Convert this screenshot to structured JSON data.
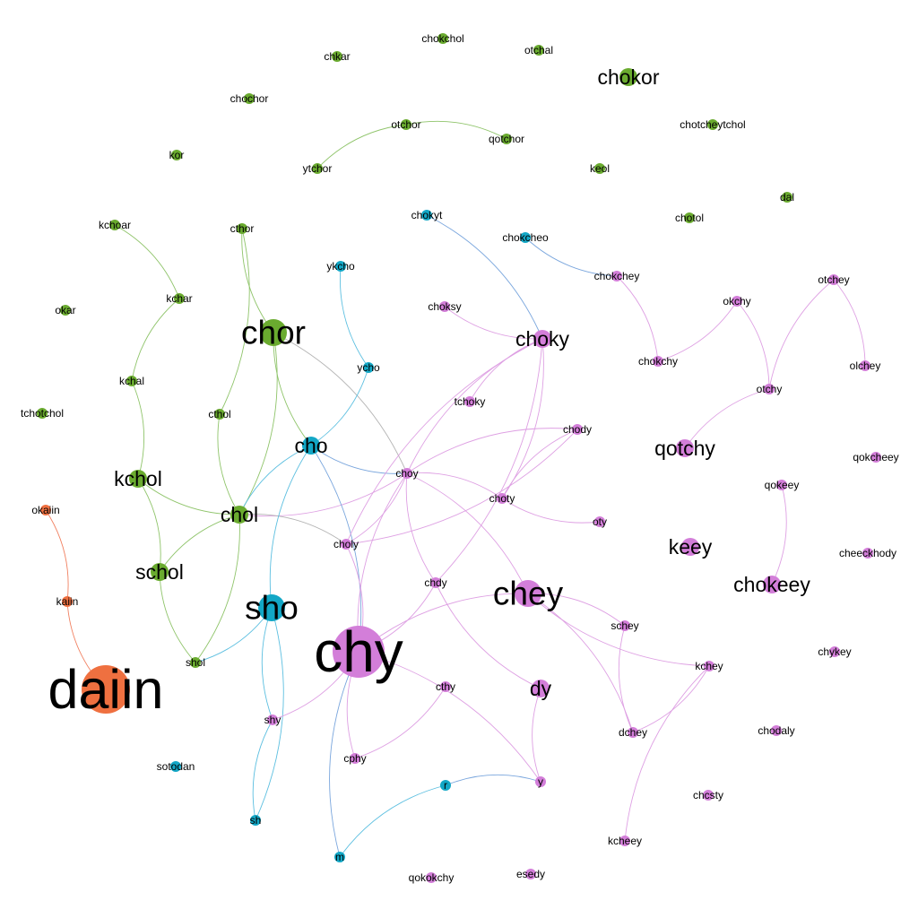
{
  "colors": {
    "green": "#6aab2f",
    "cyan": "#12a7c6",
    "pink": "#d37ed9",
    "orange": "#ef7040",
    "edge_green": "#8fc46a",
    "edge_cyan": "#5cbfe0",
    "edge_pink": "#dea0e3",
    "edge_orange": "#f18060",
    "edge_gray": "#b3b3b3",
    "edge_blue": "#7aa6dd"
  },
  "nodes": [
    {
      "id": "chokchol",
      "label": "chokchol",
      "group": "green",
      "size": 1
    },
    {
      "id": "chkar",
      "label": "chkar",
      "group": "green",
      "size": 1
    },
    {
      "id": "otchal",
      "label": "otchal",
      "group": "green",
      "size": 1
    },
    {
      "id": "chokor",
      "label": "chokor",
      "group": "green",
      "size": 3
    },
    {
      "id": "chochor",
      "label": "chochor",
      "group": "green",
      "size": 1
    },
    {
      "id": "otchor",
      "label": "otchor",
      "group": "green",
      "size": 1
    },
    {
      "id": "qotchor",
      "label": "qotchor",
      "group": "green",
      "size": 1
    },
    {
      "id": "chotcheytchol",
      "label": "chotcheytchol",
      "group": "green",
      "size": 1
    },
    {
      "id": "kor",
      "label": "kor",
      "group": "green",
      "size": 1
    },
    {
      "id": "ytchor",
      "label": "ytchor",
      "group": "green",
      "size": 1
    },
    {
      "id": "keol",
      "label": "keol",
      "group": "green",
      "size": 1
    },
    {
      "id": "dal",
      "label": "dal",
      "group": "green",
      "size": 1
    },
    {
      "id": "chotol",
      "label": "chotol",
      "group": "green",
      "size": 1
    },
    {
      "id": "kchoar",
      "label": "kchoar",
      "group": "green",
      "size": 1
    },
    {
      "id": "cthor",
      "label": "cthor",
      "group": "green",
      "size": 1
    },
    {
      "id": "chokyt",
      "label": "chokyt",
      "group": "cyan",
      "size": 1
    },
    {
      "id": "chokcheo",
      "label": "chokcheo",
      "group": "cyan",
      "size": 1
    },
    {
      "id": "ykcho",
      "label": "ykcho",
      "group": "cyan",
      "size": 1
    },
    {
      "id": "chokchey",
      "label": "chokchey",
      "group": "pink",
      "size": 1
    },
    {
      "id": "otchey",
      "label": "otchey",
      "group": "pink",
      "size": 1
    },
    {
      "id": "okar",
      "label": "okar",
      "group": "green",
      "size": 1
    },
    {
      "id": "kchar",
      "label": "kchar",
      "group": "green",
      "size": 1
    },
    {
      "id": "okchy",
      "label": "okchy",
      "group": "pink",
      "size": 1
    },
    {
      "id": "choksy",
      "label": "choksy",
      "group": "pink",
      "size": 1
    },
    {
      "id": "chor",
      "label": "chor",
      "group": "green",
      "size": 4
    },
    {
      "id": "choky",
      "label": "choky",
      "group": "pink",
      "size": 3
    },
    {
      "id": "chokchy",
      "label": "chokchy",
      "group": "pink",
      "size": 1
    },
    {
      "id": "olchey",
      "label": "olchey",
      "group": "pink",
      "size": 1
    },
    {
      "id": "ycho",
      "label": "ycho",
      "group": "cyan",
      "size": 1
    },
    {
      "id": "kchal",
      "label": "kchal",
      "group": "green",
      "size": 1
    },
    {
      "id": "otchy",
      "label": "otchy",
      "group": "pink",
      "size": 1
    },
    {
      "id": "tchoky",
      "label": "tchoky",
      "group": "pink",
      "size": 1
    },
    {
      "id": "tchotchol",
      "label": "tchotchol",
      "group": "green",
      "size": 1
    },
    {
      "id": "cthol",
      "label": "cthol",
      "group": "green",
      "size": 1
    },
    {
      "id": "chody",
      "label": "chody",
      "group": "pink",
      "size": 1
    },
    {
      "id": "cho",
      "label": "cho",
      "group": "cyan",
      "size": 3
    },
    {
      "id": "qotchy",
      "label": "qotchy",
      "group": "pink",
      "size": 3
    },
    {
      "id": "qokcheey",
      "label": "qokcheey",
      "group": "pink",
      "size": 1
    },
    {
      "id": "kchol",
      "label": "kchol",
      "group": "green",
      "size": 3
    },
    {
      "id": "choy",
      "label": "choy",
      "group": "pink",
      "size": 1
    },
    {
      "id": "qokeey",
      "label": "qokeey",
      "group": "pink",
      "size": 1
    },
    {
      "id": "choty",
      "label": "choty",
      "group": "pink",
      "size": 1
    },
    {
      "id": "okaiin",
      "label": "okaiin",
      "group": "orange",
      "size": 1
    },
    {
      "id": "chol",
      "label": "chol",
      "group": "green",
      "size": 3
    },
    {
      "id": "oty",
      "label": "oty",
      "group": "pink",
      "size": 1
    },
    {
      "id": "choly",
      "label": "choly",
      "group": "pink",
      "size": 1
    },
    {
      "id": "keey",
      "label": "keey",
      "group": "pink",
      "size": 3
    },
    {
      "id": "cheeckhody",
      "label": "cheeckhody",
      "group": "pink",
      "size": 1
    },
    {
      "id": "schol",
      "label": "schol",
      "group": "green",
      "size": 3
    },
    {
      "id": "chdy",
      "label": "chdy",
      "group": "pink",
      "size": 1
    },
    {
      "id": "chey",
      "label": "chey",
      "group": "pink",
      "size": 4
    },
    {
      "id": "chokeey",
      "label": "chokeey",
      "group": "pink",
      "size": 3
    },
    {
      "id": "kaiin",
      "label": "kaiin",
      "group": "orange",
      "size": 1
    },
    {
      "id": "sho",
      "label": "sho",
      "group": "cyan",
      "size": 4
    },
    {
      "id": "schey",
      "label": "schey",
      "group": "pink",
      "size": 1
    },
    {
      "id": "chykey",
      "label": "chykey",
      "group": "pink",
      "size": 1
    },
    {
      "id": "chy",
      "label": "chy",
      "group": "pink",
      "size": 6
    },
    {
      "id": "shol",
      "label": "shol",
      "group": "green",
      "size": 1
    },
    {
      "id": "kchey",
      "label": "kchey",
      "group": "pink",
      "size": 1
    },
    {
      "id": "daiin",
      "label": "daiin",
      "group": "orange",
      "size": 7
    },
    {
      "id": "cthy",
      "label": "cthy",
      "group": "pink",
      "size": 1
    },
    {
      "id": "dy",
      "label": "dy",
      "group": "pink",
      "size": 3
    },
    {
      "id": "shy",
      "label": "shy",
      "group": "pink",
      "size": 1
    },
    {
      "id": "dchey",
      "label": "dchey",
      "group": "pink",
      "size": 1
    },
    {
      "id": "chodaly",
      "label": "chodaly",
      "group": "pink",
      "size": 1
    },
    {
      "id": "sotodan",
      "label": "sotodan",
      "group": "cyan",
      "size": 1
    },
    {
      "id": "cphy",
      "label": "cphy",
      "group": "pink",
      "size": 1
    },
    {
      "id": "r",
      "label": "r",
      "group": "cyan",
      "size": 1
    },
    {
      "id": "y",
      "label": "y",
      "group": "pink",
      "size": 1
    },
    {
      "id": "chcsty",
      "label": "chcsty",
      "group": "pink",
      "size": 1
    },
    {
      "id": "sh",
      "label": "sh",
      "group": "cyan",
      "size": 1
    },
    {
      "id": "kcheey",
      "label": "kcheey",
      "group": "pink",
      "size": 1
    },
    {
      "id": "m",
      "label": "m",
      "group": "cyan",
      "size": 1
    },
    {
      "id": "esedy",
      "label": "esedy",
      "group": "pink",
      "size": 1
    },
    {
      "id": "qokokchy",
      "label": "qokokchy",
      "group": "pink",
      "size": 1
    }
  ],
  "edges": [
    {
      "s": "otchor",
      "t": "qotchor",
      "c": "edge_green"
    },
    {
      "s": "otchor",
      "t": "ytchor",
      "c": "edge_green"
    },
    {
      "s": "kchoar",
      "t": "kchar",
      "c": "edge_green"
    },
    {
      "s": "kchar",
      "t": "kchal",
      "c": "edge_green"
    },
    {
      "s": "kchal",
      "t": "kchol",
      "c": "edge_green"
    },
    {
      "s": "cthor",
      "t": "chor",
      "c": "edge_green"
    },
    {
      "s": "cthor",
      "t": "cthol",
      "c": "edge_green"
    },
    {
      "s": "cthol",
      "t": "chol",
      "c": "edge_green"
    },
    {
      "s": "chor",
      "t": "chol",
      "c": "edge_green"
    },
    {
      "s": "chor",
      "t": "cho",
      "c": "edge_green"
    },
    {
      "s": "chor",
      "t": "choy",
      "c": "edge_gray"
    },
    {
      "s": "kchol",
      "t": "chol",
      "c": "edge_green"
    },
    {
      "s": "kchol",
      "t": "schol",
      "c": "edge_green"
    },
    {
      "s": "chol",
      "t": "schol",
      "c": "edge_green"
    },
    {
      "s": "chol",
      "t": "shol",
      "c": "edge_green"
    },
    {
      "s": "schol",
      "t": "shol",
      "c": "edge_green"
    },
    {
      "s": "chol",
      "t": "cho",
      "c": "edge_cyan"
    },
    {
      "s": "chol",
      "t": "choy",
      "c": "edge_pink"
    },
    {
      "s": "chol",
      "t": "choly",
      "c": "edge_gray"
    },
    {
      "s": "ykcho",
      "t": "ycho",
      "c": "edge_cyan"
    },
    {
      "s": "ycho",
      "t": "cho",
      "c": "edge_cyan"
    },
    {
      "s": "cho",
      "t": "sho",
      "c": "edge_cyan"
    },
    {
      "s": "cho",
      "t": "chy",
      "c": "edge_blue"
    },
    {
      "s": "cho",
      "t": "choy",
      "c": "edge_blue"
    },
    {
      "s": "sho",
      "t": "shol",
      "c": "edge_cyan"
    },
    {
      "s": "sho",
      "t": "shy",
      "c": "edge_cyan"
    },
    {
      "s": "sho",
      "t": "sh",
      "c": "edge_cyan"
    },
    {
      "s": "shy",
      "t": "sh",
      "c": "edge_cyan"
    },
    {
      "s": "chokyt",
      "t": "choky",
      "c": "edge_blue"
    },
    {
      "s": "chokcheo",
      "t": "chokchey",
      "c": "edge_blue"
    },
    {
      "s": "chokchey",
      "t": "chokchy",
      "c": "edge_pink"
    },
    {
      "s": "chokchy",
      "t": "okchy",
      "c": "edge_pink"
    },
    {
      "s": "okchy",
      "t": "otchy",
      "c": "edge_pink"
    },
    {
      "s": "otchey",
      "t": "otchy",
      "c": "edge_pink"
    },
    {
      "s": "otchey",
      "t": "olchey",
      "c": "edge_pink"
    },
    {
      "s": "otchy",
      "t": "qotchy",
      "c": "edge_pink"
    },
    {
      "s": "qokeey",
      "t": "chokeey",
      "c": "edge_pink"
    },
    {
      "s": "choksy",
      "t": "choky",
      "c": "edge_pink"
    },
    {
      "s": "tchoky",
      "t": "choky",
      "c": "edge_pink"
    },
    {
      "s": "choky",
      "t": "choy",
      "c": "edge_pink"
    },
    {
      "s": "choky",
      "t": "choty",
      "c": "edge_pink"
    },
    {
      "s": "choky",
      "t": "choly",
      "c": "edge_pink"
    },
    {
      "s": "choky",
      "t": "chdy",
      "c": "edge_pink"
    },
    {
      "s": "chody",
      "t": "choy",
      "c": "edge_pink"
    },
    {
      "s": "chody",
      "t": "choly",
      "c": "edge_pink"
    },
    {
      "s": "chody",
      "t": "choty",
      "c": "edge_pink"
    },
    {
      "s": "choy",
      "t": "choty",
      "c": "edge_pink"
    },
    {
      "s": "choy",
      "t": "chy",
      "c": "edge_pink"
    },
    {
      "s": "choy",
      "t": "chey",
      "c": "edge_pink"
    },
    {
      "s": "choy",
      "t": "chdy",
      "c": "edge_pink"
    },
    {
      "s": "choy",
      "t": "choly",
      "c": "edge_pink"
    },
    {
      "s": "choty",
      "t": "oty",
      "c": "edge_pink"
    },
    {
      "s": "choly",
      "t": "chy",
      "c": "edge_pink"
    },
    {
      "s": "chdy",
      "t": "dy",
      "c": "edge_pink"
    },
    {
      "s": "chdy",
      "t": "chy",
      "c": "edge_pink"
    },
    {
      "s": "chey",
      "t": "chy",
      "c": "edge_pink"
    },
    {
      "s": "chey",
      "t": "schey",
      "c": "edge_pink"
    },
    {
      "s": "chey",
      "t": "kchey",
      "c": "edge_pink"
    },
    {
      "s": "chey",
      "t": "dchey",
      "c": "edge_pink"
    },
    {
      "s": "schey",
      "t": "dchey",
      "c": "edge_pink"
    },
    {
      "s": "kchey",
      "t": "dchey",
      "c": "edge_pink"
    },
    {
      "s": "kchey",
      "t": "kcheey",
      "c": "edge_pink"
    },
    {
      "s": "chy",
      "t": "shy",
      "c": "edge_pink"
    },
    {
      "s": "chy",
      "t": "cphy",
      "c": "edge_pink"
    },
    {
      "s": "chy",
      "t": "y",
      "c": "edge_pink"
    },
    {
      "s": "chy",
      "t": "m",
      "c": "edge_blue"
    },
    {
      "s": "cthy",
      "t": "cphy",
      "c": "edge_pink"
    },
    {
      "s": "dy",
      "t": "y",
      "c": "edge_pink"
    },
    {
      "s": "r",
      "t": "y",
      "c": "edge_blue"
    },
    {
      "s": "r",
      "t": "m",
      "c": "edge_cyan"
    },
    {
      "s": "okaiin",
      "t": "kaiin",
      "c": "edge_orange"
    },
    {
      "s": "kaiin",
      "t": "daiin",
      "c": "edge_orange"
    }
  ]
}
